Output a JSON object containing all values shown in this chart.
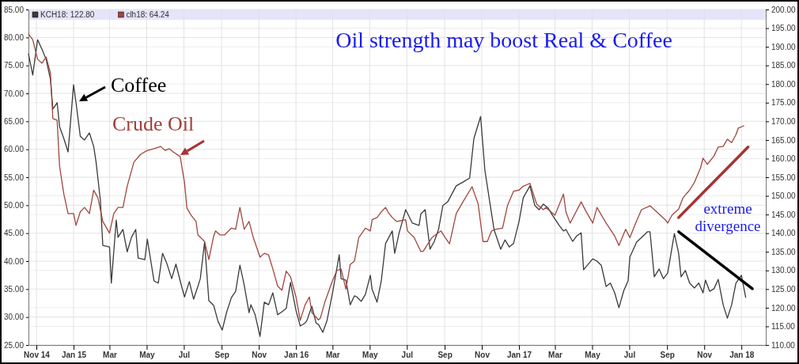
{
  "chart_data": {
    "type": "line",
    "title": "Oil strength may boost Real & Coffee",
    "annotations": [
      "Coffee",
      "Crude Oil",
      "extreme divergence"
    ],
    "xlim": [
      "2014-10-19",
      "2018-02-10"
    ],
    "xticks": [
      {
        "value": "2014-11-01",
        "label": "Nov 14"
      },
      {
        "value": "2015-01-01",
        "label": "Jan 15"
      },
      {
        "value": "2015-03-01",
        "label": "Mar"
      },
      {
        "value": "2015-05-01",
        "label": "May"
      },
      {
        "value": "2015-07-01",
        "label": "Jul"
      },
      {
        "value": "2015-09-01",
        "label": "Sep"
      },
      {
        "value": "2015-11-01",
        "label": "Nov"
      },
      {
        "value": "2016-01-01",
        "label": "Jan 16"
      },
      {
        "value": "2016-03-01",
        "label": "Mar"
      },
      {
        "value": "2016-05-01",
        "label": "May"
      },
      {
        "value": "2016-07-01",
        "label": "Jul"
      },
      {
        "value": "2016-09-01",
        "label": "Sep"
      },
      {
        "value": "2016-11-01",
        "label": "Nov"
      },
      {
        "value": "2017-01-01",
        "label": "Jan 17"
      },
      {
        "value": "2017-03-01",
        "label": "Mar"
      },
      {
        "value": "2017-05-01",
        "label": "May"
      },
      {
        "value": "2017-07-01",
        "label": "Jul"
      },
      {
        "value": "2017-09-01",
        "label": "Sep"
      },
      {
        "value": "2017-11-01",
        "label": "Nov"
      },
      {
        "value": "2018-01-01",
        "label": "Jan 18"
      }
    ],
    "ylim": [
      25,
      85
    ],
    "yticks": [
      {
        "value": 25,
        "label": "25.00"
      },
      {
        "value": 30,
        "label": "30.00"
      },
      {
        "value": 35,
        "label": "35.00"
      },
      {
        "value": 40,
        "label": "40.00"
      },
      {
        "value": 45,
        "label": "45.00"
      },
      {
        "value": 50,
        "label": "50.00"
      },
      {
        "value": 55,
        "label": "55.00"
      },
      {
        "value": 60,
        "label": "60.00"
      },
      {
        "value": 65,
        "label": "65.00"
      },
      {
        "value": 70,
        "label": "70.00"
      },
      {
        "value": 75,
        "label": "75.00"
      },
      {
        "value": 80,
        "label": "80.00"
      },
      {
        "value": 85,
        "label": "85.00"
      }
    ],
    "y2lim": [
      110,
      200
    ],
    "y2ticks": [
      {
        "value": 110,
        "label": "110.00"
      },
      {
        "value": 115,
        "label": "115.00"
      },
      {
        "value": 120,
        "label": "120.00"
      },
      {
        "value": 125,
        "label": "125.00"
      },
      {
        "value": 130,
        "label": "130.00"
      },
      {
        "value": 135,
        "label": "135.00"
      },
      {
        "value": 140,
        "label": "140.00"
      },
      {
        "value": 145,
        "label": "145.00"
      },
      {
        "value": 150,
        "label": "150.00"
      },
      {
        "value": 155,
        "label": "155.00"
      },
      {
        "value": 160,
        "label": "160.00"
      },
      {
        "value": 165,
        "label": "165.00"
      },
      {
        "value": 170,
        "label": "170.00"
      },
      {
        "value": 175,
        "label": "175.00"
      },
      {
        "value": 180,
        "label": "180.00"
      },
      {
        "value": 185,
        "label": "185.00"
      },
      {
        "value": 190,
        "label": "190.00"
      },
      {
        "value": 195,
        "label": "195.00"
      },
      {
        "value": 200,
        "label": "200.00"
      }
    ],
    "grid": true,
    "legend": "top left",
    "marker": "none",
    "line_style": "solid",
    "series": [
      {
        "name": "KCH18: 122.80",
        "color": "#3a3a3a",
        "axis": "y2",
        "x": [
          "2014-10-19",
          "2014-10-26",
          "2014-11-03",
          "2014-11-10",
          "2014-11-17",
          "2014-11-24",
          "2014-11-28",
          "2014-12-05",
          "2014-12-09",
          "2014-12-16",
          "2014-12-23",
          "2015-01-01",
          "2015-01-05",
          "2015-01-12",
          "2015-01-19",
          "2015-01-27",
          "2015-02-03",
          "2015-02-07",
          "2015-02-14",
          "2015-02-18",
          "2015-03-01",
          "2015-03-04",
          "2015-03-12",
          "2015-03-15",
          "2015-03-23",
          "2015-03-30",
          "2015-04-06",
          "2015-04-13",
          "2015-04-17",
          "2015-04-28",
          "2015-05-02",
          "2015-05-13",
          "2015-05-20",
          "2015-05-27",
          "2015-06-03",
          "2015-06-11",
          "2015-06-18",
          "2015-06-25",
          "2015-07-02",
          "2015-07-10",
          "2015-07-17",
          "2015-07-24",
          "2015-07-28",
          "2015-08-04",
          "2015-08-11",
          "2015-08-19",
          "2015-08-26",
          "2015-09-02",
          "2015-09-09",
          "2015-09-17",
          "2015-09-24",
          "2015-10-01",
          "2015-10-08",
          "2015-10-16",
          "2015-10-19",
          "2015-10-26",
          "2015-11-03",
          "2015-11-10",
          "2015-11-17",
          "2015-11-24",
          "2015-12-02",
          "2015-12-09",
          "2015-12-16",
          "2015-12-23",
          "2016-01-01",
          "2016-01-08",
          "2016-01-16",
          "2016-01-19",
          "2016-01-27",
          "2016-02-03",
          "2016-02-07",
          "2016-02-14",
          "2016-02-21",
          "2016-03-01",
          "2016-03-12",
          "2016-03-15",
          "2016-03-23",
          "2016-03-30",
          "2016-04-06",
          "2016-04-10",
          "2016-04-17",
          "2016-04-24",
          "2016-05-02",
          "2016-05-05",
          "2016-05-13",
          "2016-05-20",
          "2016-05-27",
          "2016-06-07",
          "2016-06-11",
          "2016-06-18",
          "2016-06-29",
          "2016-07-10",
          "2016-07-21",
          "2016-07-24",
          "2016-07-31",
          "2016-08-08",
          "2016-08-15",
          "2016-08-22",
          "2016-08-29",
          "2016-09-06",
          "2016-09-20",
          "2016-10-01",
          "2016-10-12",
          "2016-10-19",
          "2016-10-30",
          "2016-11-06",
          "2016-11-14",
          "2016-11-21",
          "2016-12-02",
          "2016-12-09",
          "2016-12-16",
          "2016-12-23",
          "2017-01-01",
          "2017-01-08",
          "2017-01-19",
          "2017-01-27",
          "2017-02-03",
          "2017-02-10",
          "2017-02-18",
          "2017-02-25",
          "2017-03-08",
          "2017-03-15",
          "2017-03-19",
          "2017-03-30",
          "2017-04-06",
          "2017-04-13",
          "2017-04-17",
          "2017-05-02",
          "2017-05-09",
          "2017-05-16",
          "2017-05-24",
          "2017-05-31",
          "2017-06-07",
          "2017-06-14",
          "2017-06-22",
          "2017-06-29",
          "2017-07-02",
          "2017-07-13",
          "2017-07-24",
          "2017-07-31",
          "2017-08-04",
          "2017-08-11",
          "2017-08-19",
          "2017-08-26",
          "2017-09-02",
          "2017-09-13",
          "2017-09-20",
          "2017-09-24",
          "2017-10-01",
          "2017-10-08",
          "2017-10-16",
          "2017-10-23",
          "2017-10-30",
          "2017-11-03",
          "2017-11-10",
          "2017-11-17",
          "2017-11-24",
          "2017-12-02",
          "2017-12-09",
          "2017-12-16",
          "2017-12-23",
          "2018-01-01",
          "2018-01-08"
        ],
        "values": [
          188.1,
          182.4,
          191.9,
          189.4,
          186.6,
          181.3,
          173.3,
          175,
          168.6,
          165.4,
          161.8,
          179.8,
          175,
          166,
          165,
          166.9,
          163.3,
          159,
          148.8,
          136.7,
          136.3,
          126.6,
          143.5,
          138.9,
          141,
          135,
          138.9,
          141,
          133.3,
          132.9,
          138.4,
          127.2,
          126.6,
          134.6,
          131.9,
          127.8,
          131.7,
          127.2,
          122.9,
          127,
          122.3,
          125.7,
          127.8,
          137.6,
          121.9,
          120.6,
          116.4,
          114,
          118.7,
          122.7,
          124.4,
          131.4,
          126.1,
          118.7,
          120.8,
          118.1,
          112.3,
          121.5,
          120.8,
          124,
          118.1,
          118.9,
          119.8,
          126.8,
          119.3,
          115.1,
          115.9,
          116.6,
          120.4,
          115.9,
          115.5,
          113.4,
          116.6,
          124,
          134.2,
          127.8,
          127.4,
          120.8,
          123.2,
          122.9,
          121.7,
          123.6,
          128.7,
          124.9,
          121.5,
          127.2,
          137.2,
          140.6,
          134.6,
          139.9,
          146.3,
          142.7,
          142.1,
          145.2,
          146.3,
          135.7,
          137.8,
          141,
          147.4,
          148.4,
          152.7,
          153.7,
          154.8,
          165.4,
          171.3,
          156.9,
          148.4,
          141,
          135.7,
          138.2,
          136.3,
          137.2,
          143.1,
          149.5,
          152.7,
          147.4,
          146.3,
          147.8,
          146.7,
          144.8,
          142.1,
          140.6,
          141,
          137.8,
          139.3,
          140.1,
          130.2,
          133.1,
          132.5,
          131.4,
          125.7,
          126.6,
          124,
          120,
          124.6,
          127.2,
          133.6,
          137.6,
          139.3,
          140.4,
          140.4,
          128.3,
          130.4,
          127.8,
          129.3,
          139.9,
          134.6,
          128.3,
          130,
          126.6,
          125.3,
          126.6,
          124,
          127.4,
          124.4,
          125.1,
          127.6,
          120.8,
          117.2,
          120.8,
          126.6,
          128.7,
          122.8
        ]
      },
      {
        "name": "clh18: 64.24",
        "color": "#a0463f",
        "x": [
          "2014-10-19",
          "2014-10-26",
          "2014-11-03",
          "2014-11-10",
          "2014-11-17",
          "2014-11-24",
          "2014-11-28",
          "2014-12-05",
          "2014-12-09",
          "2014-12-16",
          "2014-12-23",
          "2015-01-01",
          "2015-01-05",
          "2015-01-12",
          "2015-01-19",
          "2015-01-27",
          "2015-02-03",
          "2015-02-10",
          "2015-02-18",
          "2015-03-01",
          "2015-03-08",
          "2015-03-15",
          "2015-03-23",
          "2015-03-30",
          "2015-04-10",
          "2015-04-21",
          "2015-05-02",
          "2015-05-13",
          "2015-05-24",
          "2015-05-31",
          "2015-06-07",
          "2015-06-14",
          "2015-06-25",
          "2015-07-02",
          "2015-07-06",
          "2015-07-13",
          "2015-07-21",
          "2015-07-24",
          "2015-08-04",
          "2015-08-11",
          "2015-08-19",
          "2015-08-22",
          "2015-08-29",
          "2015-09-06",
          "2015-09-17",
          "2015-09-24",
          "2015-10-01",
          "2015-10-08",
          "2015-10-16",
          "2015-10-23",
          "2015-11-03",
          "2015-11-10",
          "2015-11-17",
          "2015-11-24",
          "2015-12-02",
          "2015-12-09",
          "2015-12-16",
          "2015-12-23",
          "2016-01-01",
          "2016-01-08",
          "2016-01-16",
          "2016-01-23",
          "2016-01-27",
          "2016-02-07",
          "2016-02-10",
          "2016-02-18",
          "2016-03-01",
          "2016-03-08",
          "2016-03-15",
          "2016-03-23",
          "2016-03-30",
          "2016-04-06",
          "2016-04-13",
          "2016-04-24",
          "2016-05-02",
          "2016-05-05",
          "2016-05-13",
          "2016-05-20",
          "2016-05-27",
          "2016-05-31",
          "2016-06-07",
          "2016-06-14",
          "2016-06-29",
          "2016-07-02",
          "2016-07-13",
          "2016-07-24",
          "2016-07-28",
          "2016-08-11",
          "2016-08-26",
          "2016-09-02",
          "2016-09-09",
          "2016-09-20",
          "2016-10-01",
          "2016-10-16",
          "2016-10-26",
          "2016-11-03",
          "2016-11-10",
          "2016-11-17",
          "2016-11-24",
          "2016-12-05",
          "2016-12-13",
          "2016-12-23",
          "2017-01-01",
          "2017-01-08",
          "2017-01-19",
          "2017-01-30",
          "2017-02-10",
          "2017-02-14",
          "2017-03-01",
          "2017-03-15",
          "2017-03-19",
          "2017-03-26",
          "2017-04-13",
          "2017-04-21",
          "2017-05-02",
          "2017-05-09",
          "2017-05-24",
          "2017-06-07",
          "2017-06-14",
          "2017-06-25",
          "2017-07-02",
          "2017-07-10",
          "2017-07-21",
          "2017-08-04",
          "2017-08-15",
          "2017-08-29",
          "2017-09-02",
          "2017-09-09",
          "2017-09-20",
          "2017-09-27",
          "2017-10-08",
          "2017-10-16",
          "2017-10-26",
          "2017-10-30",
          "2017-11-06",
          "2017-11-17",
          "2017-11-24",
          "2017-12-02",
          "2017-12-09",
          "2017-12-16",
          "2017-12-23",
          "2017-12-27",
          "2018-01-05"
        ],
        "values": [
          80.6,
          79.6,
          76.1,
          75.4,
          76.5,
          73.7,
          65.5,
          65.2,
          57,
          52,
          48.5,
          48.5,
          46.4,
          48.8,
          49.6,
          48.5,
          52.7,
          51.3,
          47.1,
          45,
          48.5,
          49.6,
          49.6,
          53.4,
          57.7,
          59.1,
          59.8,
          60.1,
          60.5,
          59.8,
          60.1,
          59.5,
          58.7,
          54.1,
          49.5,
          48.2,
          47.1,
          44.7,
          43.5,
          40.3,
          44.5,
          45.4,
          44.7,
          44.7,
          45.9,
          45.7,
          49.6,
          45.7,
          47.1,
          44.2,
          40.7,
          41.4,
          41.1,
          38.6,
          35.5,
          34.8,
          38.2,
          37.2,
          33.6,
          29.4,
          32.2,
          33.6,
          30.8,
          29.5,
          29.8,
          32.9,
          36.5,
          38.3,
          38.6,
          35,
          39.4,
          40,
          44.2,
          45.9,
          45.4,
          47.4,
          47.8,
          48.8,
          49.6,
          48.8,
          47.8,
          47.1,
          47.4,
          45.4,
          44.2,
          41.7,
          41.8,
          44.2,
          45.4,
          44.2,
          43.1,
          48.5,
          50.6,
          53.3,
          50.2,
          43.5,
          43.5,
          45.4,
          45.7,
          45.9,
          49.9,
          52.5,
          52.7,
          53.4,
          53.9,
          50.2,
          49.2,
          49.6,
          48.2,
          52,
          48.8,
          46.8,
          50.6,
          48.9,
          46.8,
          49.6,
          46.8,
          44.5,
          42.8,
          45.7,
          44.2,
          46.4,
          49.2,
          49.9,
          48.8,
          47.4,
          46.8,
          48.2,
          49.3,
          51.3,
          52.7,
          54.1,
          56.7,
          58.4,
          57.3,
          58.8,
          60.4,
          60.5,
          61.8,
          61.2,
          62.6,
          63.8,
          64.2
        ]
      },
      {
        "type": "line",
        "color": "#a83232",
        "x": [
          "2017-09-20",
          "2018-01-12"
        ],
        "values": [
          47.8,
          60.4
        ]
      },
      {
        "type": "line",
        "color": "#000000",
        "axis": "y2",
        "x": [
          "2017-09-20",
          "2018-01-19"
        ],
        "values": [
          140.4,
          125.1
        ]
      }
    ]
  }
}
